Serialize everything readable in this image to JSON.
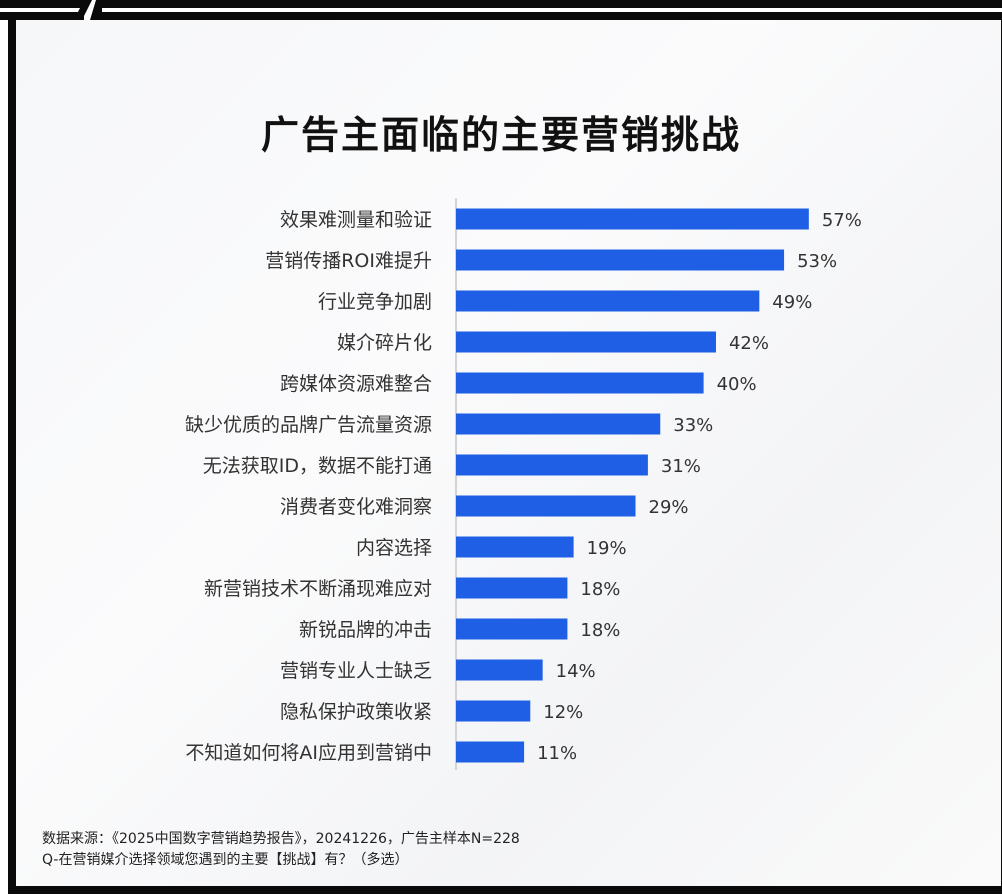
{
  "chart_data": {
    "type": "bar",
    "orientation": "horizontal",
    "title": "广告主面临的主要营销挑战",
    "categories": [
      "效果难测量和验证",
      "营销传播ROI难提升",
      "行业竞争加剧",
      "媒介碎片化",
      "跨媒体资源难整合",
      "缺少优质的品牌广告流量资源",
      "无法获取ID，数据不能打通",
      "消费者变化难洞察",
      "内容选择",
      "新营销技术不断涌现难应对",
      "新锐品牌的冲击",
      "营销专业人士缺乏",
      "隐私保护政策收紧",
      "不知道如何将AI应用到营销中"
    ],
    "values": [
      57,
      53,
      49,
      42,
      40,
      33,
      31,
      29,
      19,
      18,
      18,
      14,
      12,
      11
    ],
    "value_labels": [
      "57%",
      "53%",
      "49%",
      "42%",
      "40%",
      "33%",
      "31%",
      "29%",
      "19%",
      "18%",
      "18%",
      "14%",
      "12%",
      "11%"
    ],
    "unit": "%",
    "xlim": [
      0,
      100
    ],
    "grid": false,
    "bar_color": "#1f5fe6"
  },
  "footnote": {
    "source": "数据来源：《2025中国数字营销趋势报告》，20241226，广告主样本N=228",
    "question": "Q-在营销媒介选择领域您遇到的主要【挑战】有？（多选）"
  }
}
